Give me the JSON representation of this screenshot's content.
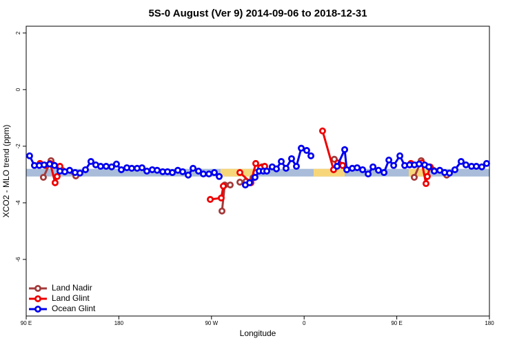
{
  "chart_data": {
    "type": "line",
    "title": "5S-0 August (Ver 9)   2014-09-06 to 2018-12-31",
    "x_label": "Longitude",
    "y_label": "XCO2 - MLO trend (ppm)",
    "xlim": [
      90,
      540
    ],
    "ylim": [
      -8,
      2.24
    ],
    "xticks": [
      {
        "value": 90,
        "label": "90 E"
      },
      {
        "value": 180,
        "label": "180"
      },
      {
        "value": 270,
        "label": "90 W"
      },
      {
        "value": 360,
        "label": "0"
      },
      {
        "value": 450,
        "label": "90 E"
      },
      {
        "value": 540,
        "label": "180"
      }
    ],
    "yticks": [
      2,
      0,
      -2,
      -4,
      -6
    ],
    "legend": "bottom-left",
    "band": {
      "ylim": [
        -3.07,
        -2.8
      ],
      "color": "#a9bcd9",
      "highlight_color": "#f7d67a",
      "highlights": [
        [
          278.8,
          313.6
        ],
        [
          369.2,
          399.4
        ],
        [
          461.6,
          481.1
        ]
      ]
    },
    "series": [
      {
        "name": "Land Nadir",
        "color": "#a33a3a",
        "x": [
          106.7,
          114.1,
          138.2,
          null,
          280.2,
          282.9,
          288.2,
          null,
          297.6,
          303.6,
          310.3,
          313,
          319,
          null,
          389.3,
          394,
          397.4,
          null,
          467,
          473.7,
          498.5
        ],
        "values": [
          -3.1,
          -2.51,
          -3.05,
          null,
          -4.29,
          -3.37,
          -3.37,
          null,
          -3.27,
          -3.24,
          -3.12,
          -2.93,
          -2.73,
          null,
          -2.46,
          -2.63,
          -2.68,
          null,
          -3.1,
          -2.51,
          -3.02
        ]
      },
      {
        "name": "Land Glint",
        "color": "#ee0000",
        "x": [
          103.4,
          108.8,
          113.4,
          118.1,
          120.1,
          122.8,
          null,
          268.8,
          279.5,
          281.5,
          null,
          297.6,
          308.3,
          313,
          317.7,
          321.7,
          null,
          377.9,
          388.6,
          392.7,
          397.4,
          null,
          463.7,
          474.4,
          478.4,
          479.7,
          482.4
        ],
        "values": [
          -2.61,
          -2.68,
          -2.61,
          -3.29,
          -3.07,
          -2.71,
          null,
          -3.88,
          -3.83,
          -3.41,
          null,
          -2.93,
          -3.29,
          -2.61,
          -2.76,
          -2.71,
          null,
          -1.46,
          -2.83,
          -2.59,
          -2.68,
          null,
          -2.61,
          -2.59,
          -3.32,
          -3.07,
          -2.73
        ]
      },
      {
        "name": "Ocean Glint",
        "color": "#0000ee",
        "x": [
          93.3,
          98,
          102.7,
          107.4,
          112.8,
          117.5,
          122.8,
          127.5,
          132.2,
          137.5,
          142.2,
          147.6,
          152.9,
          157.6,
          162.3,
          167.7,
          173,
          177.7,
          182.4,
          187.8,
          192.5,
          197.8,
          202.5,
          207.2,
          212.5,
          217.2,
          222.6,
          227.3,
          232,
          237.3,
          242,
          247.4,
          252.1,
          257.4,
          262.1,
          267.5,
          272.8,
          277.5,
          null,
          302.9,
          307,
          312.3,
          316.3,
          320.3,
          323.7,
          329,
          333.1,
          337.8,
          342.4,
          347.8,
          352.5,
          357.2,
          362.5,
          366.6,
          null,
          392,
          399.4,
          401.4,
          406.8,
          411.5,
          416.8,
          422.2,
          426.9,
          432.2,
          437.6,
          442.3,
          447,
          453,
          457.7,
          462.4,
          467.1,
          471.7,
          477.1,
          481.1,
          486.4,
          491.8,
          496.5,
          501.2,
          506.5,
          512.5,
          517.2,
          522.6,
          527.3,
          532.6,
          537.3
        ],
        "values": [
          -2.34,
          -2.68,
          -2.68,
          -2.66,
          -2.63,
          -2.68,
          -2.88,
          -2.9,
          -2.85,
          -2.93,
          -2.95,
          -2.83,
          -2.54,
          -2.66,
          -2.71,
          -2.71,
          -2.73,
          -2.63,
          -2.83,
          -2.76,
          -2.78,
          -2.78,
          -2.76,
          -2.88,
          -2.83,
          -2.85,
          -2.9,
          -2.9,
          -2.93,
          -2.85,
          -2.9,
          -3.02,
          -2.78,
          -2.88,
          -2.98,
          -2.98,
          -2.93,
          -3.07,
          null,
          -3.37,
          -3.29,
          -3.1,
          -2.88,
          -2.88,
          -2.88,
          -2.73,
          -2.8,
          -2.54,
          -2.78,
          -2.44,
          -2.71,
          -2.07,
          -2.15,
          -2.34,
          null,
          -2.71,
          -2.12,
          -2.83,
          -2.78,
          -2.76,
          -2.83,
          -2.98,
          -2.73,
          -2.85,
          -2.93,
          -2.49,
          -2.68,
          -2.34,
          -2.68,
          -2.66,
          -2.66,
          -2.63,
          -2.66,
          -2.73,
          -2.88,
          -2.85,
          -2.93,
          -2.95,
          -2.83,
          -2.54,
          -2.66,
          -2.71,
          -2.71,
          -2.73,
          -2.61
        ]
      }
    ]
  }
}
